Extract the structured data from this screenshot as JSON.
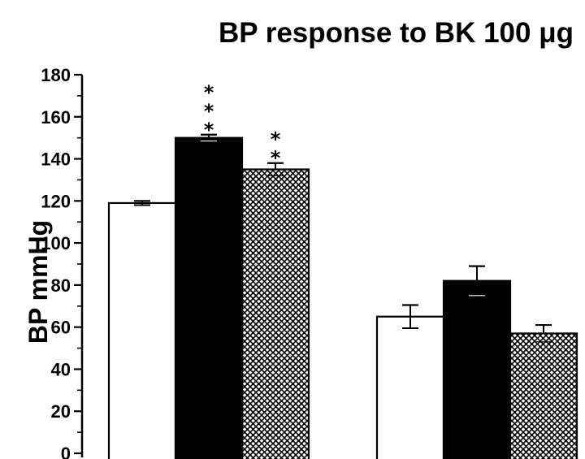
{
  "chart_data": {
    "type": "bar",
    "title": "BP response to BK 100 μg",
    "ylabel": "BP mmHg",
    "xlabel": "",
    "ylim": [
      0,
      180
    ],
    "yticks": [
      0,
      20,
      40,
      60,
      80,
      100,
      120,
      140,
      160,
      180
    ],
    "grid": false,
    "legend": "none",
    "groups": 2,
    "series": [
      {
        "fill": "white",
        "color": "#ffffff",
        "values": [
          119,
          65
        ],
        "errors": [
          1,
          5.5
        ],
        "annotations": [
          "",
          ""
        ]
      },
      {
        "fill": "solid",
        "color": "#000000",
        "values": [
          150,
          82
        ],
        "errors": [
          1.5,
          7
        ],
        "annotations": [
          "***",
          ""
        ]
      },
      {
        "fill": "crosshatch",
        "color": "#000000",
        "values": [
          135,
          57
        ],
        "errors": [
          3,
          4
        ],
        "annotations": [
          "**",
          ""
        ]
      }
    ]
  }
}
